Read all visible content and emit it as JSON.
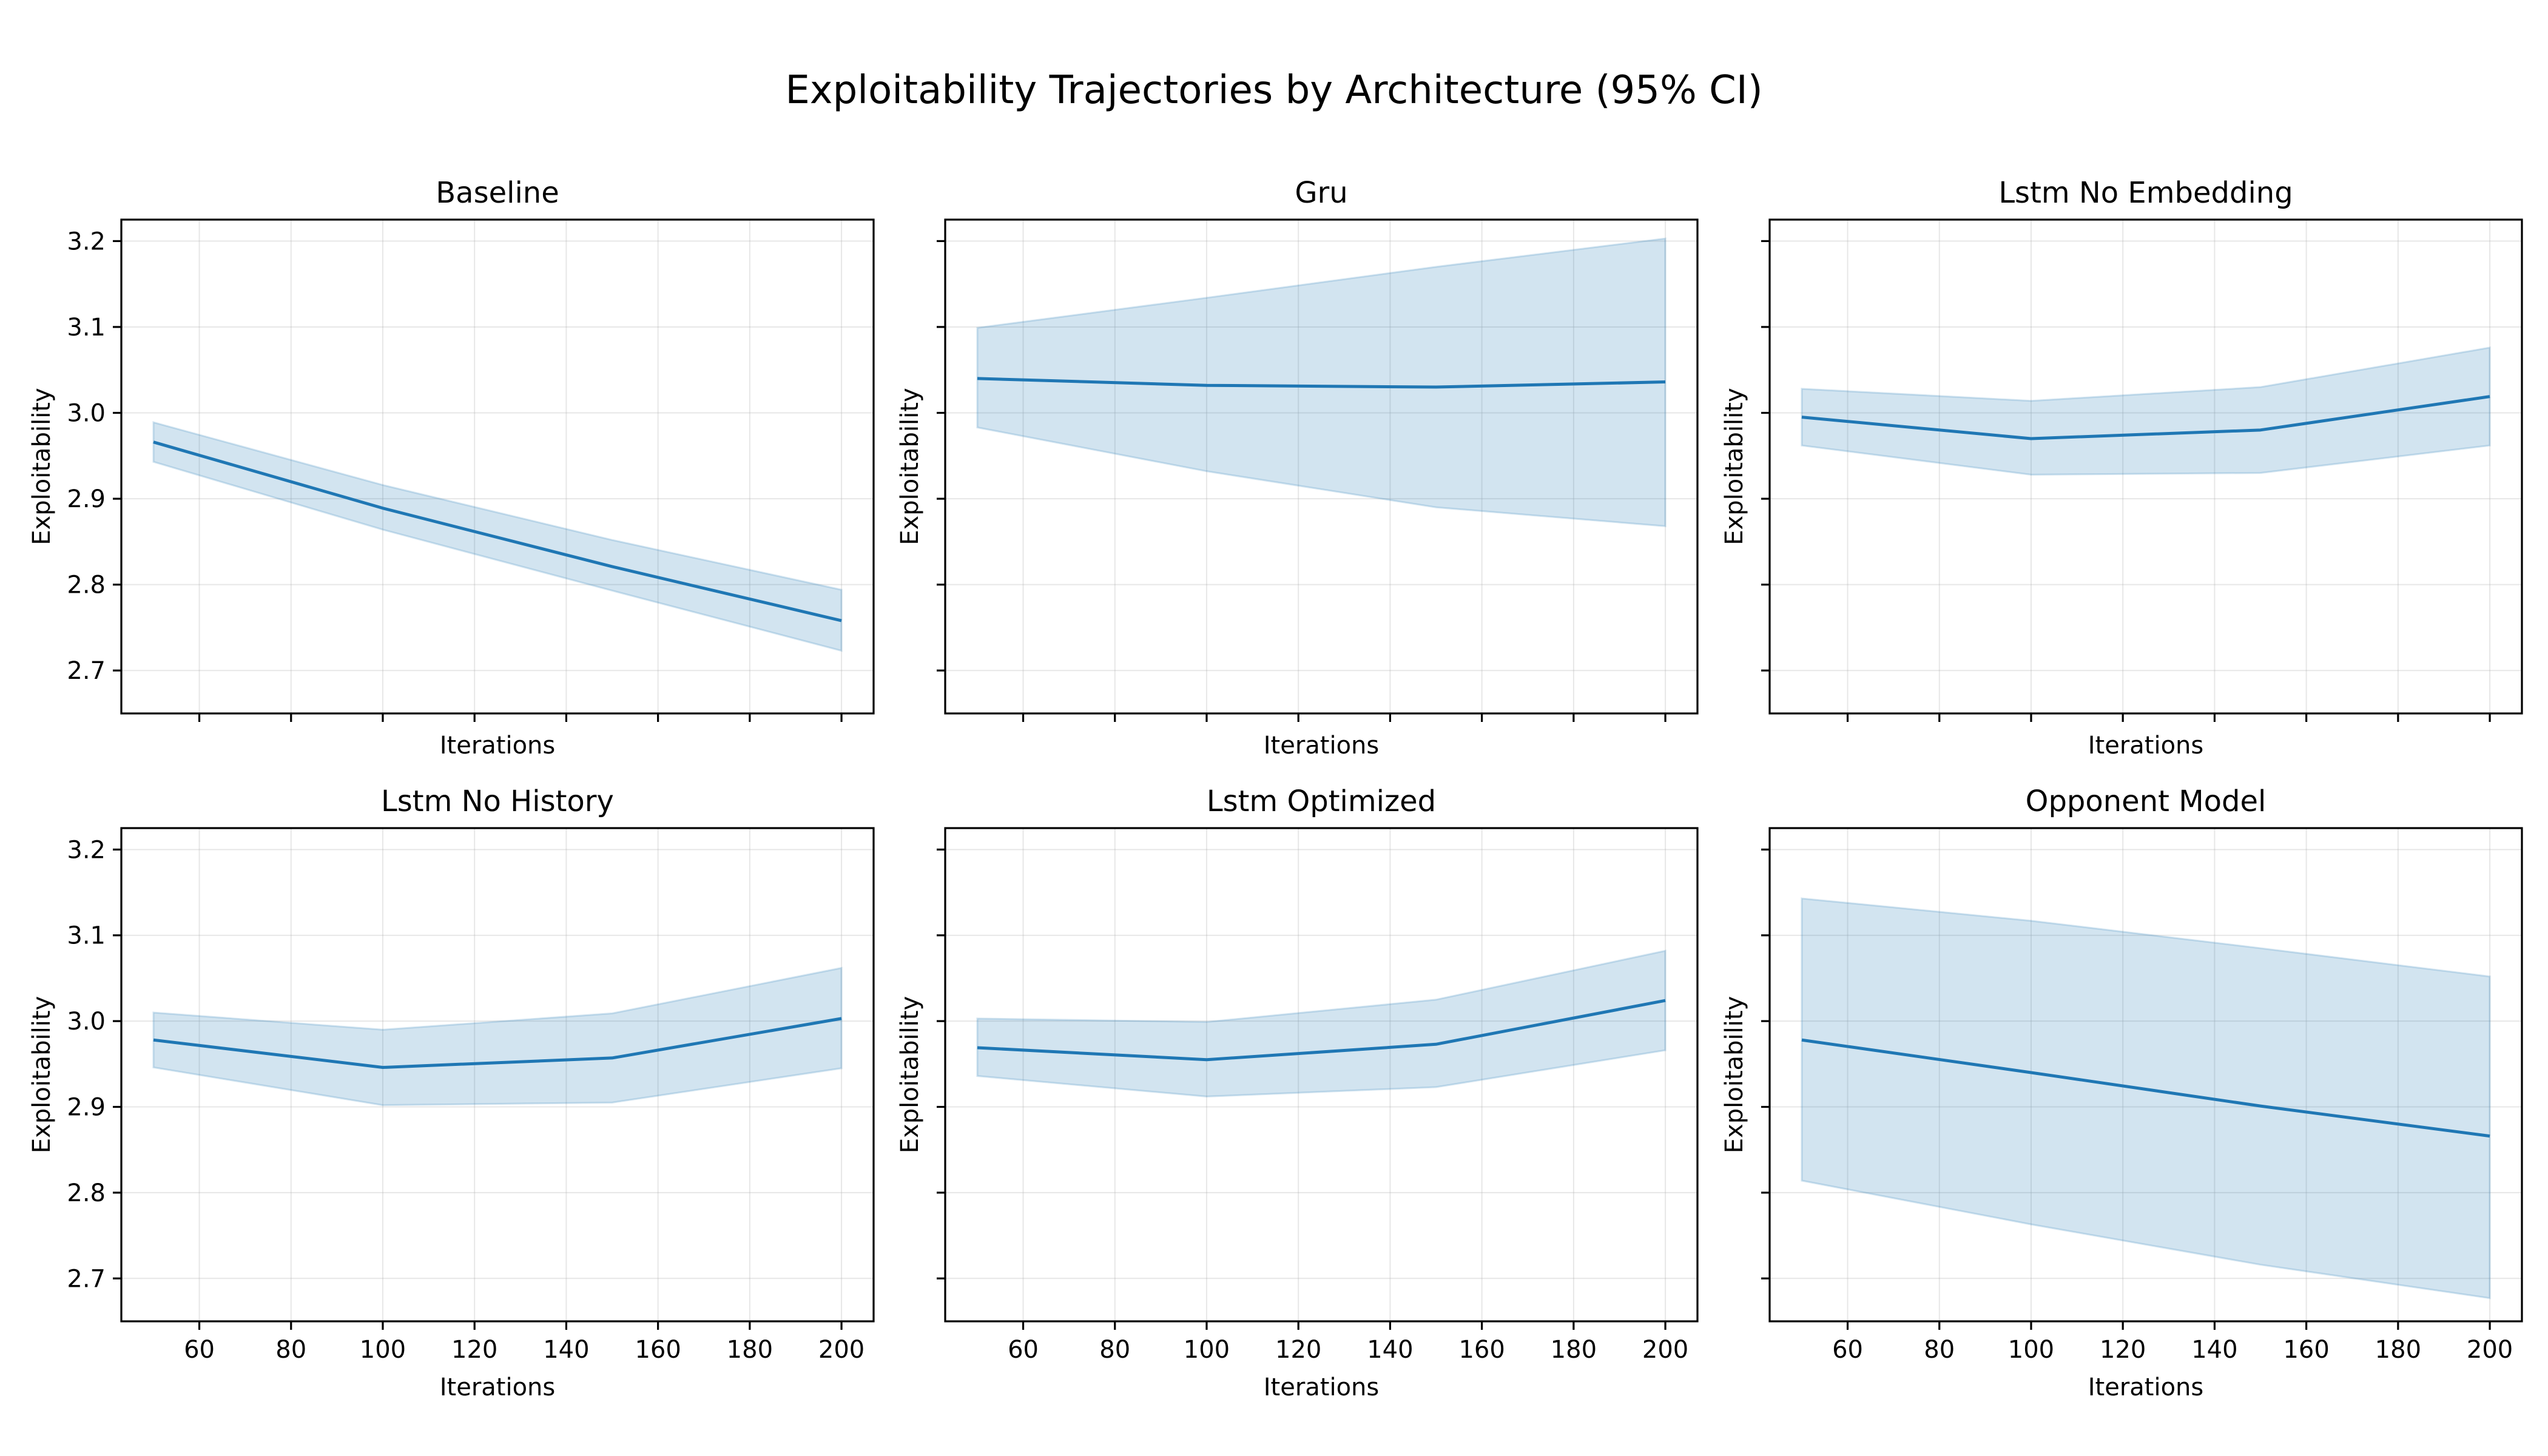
{
  "figure": {
    "title": "Exploitability Trajectories by Architecture (95% CI)"
  },
  "chart_data": {
    "type": "line",
    "layout": "grid 2x3, shared axes",
    "title": "Exploitability Trajectories by Architecture (95% CI)",
    "xlabel": "Iterations",
    "ylabel": "Exploitability",
    "xlim": [
      43,
      207
    ],
    "ylim": [
      2.65,
      3.225
    ],
    "x_ticks": [
      60,
      80,
      100,
      120,
      140,
      160,
      180,
      200
    ],
    "y_ticks": [
      2.7,
      2.8,
      2.9,
      3.0,
      3.1,
      3.2
    ],
    "x_tick_labels": [
      "60",
      "80",
      "100",
      "120",
      "140",
      "160",
      "180",
      "200"
    ],
    "y_tick_labels": [
      "2.7",
      "2.8",
      "2.9",
      "3.0",
      "3.1",
      "3.2"
    ],
    "grid": true,
    "line_color": "#1f77b4",
    "band_color": "#1f77b4",
    "x": [
      50,
      100,
      150,
      200
    ],
    "panels": [
      {
        "title": "Baseline",
        "mean": [
          2.966,
          2.889,
          2.821,
          2.758
        ],
        "lower": [
          2.943,
          2.864,
          2.793,
          2.723
        ],
        "upper": [
          2.989,
          2.916,
          2.852,
          2.794
        ]
      },
      {
        "title": "Gru",
        "mean": [
          3.04,
          3.032,
          3.03,
          3.036
        ],
        "lower": [
          2.983,
          2.932,
          2.89,
          2.868
        ],
        "upper": [
          3.099,
          3.134,
          3.17,
          3.203
        ]
      },
      {
        "title": "Lstm No Embedding",
        "mean": [
          2.995,
          2.97,
          2.98,
          3.019
        ],
        "lower": [
          2.962,
          2.928,
          2.93,
          2.962
        ],
        "upper": [
          3.028,
          3.014,
          3.03,
          3.076
        ]
      },
      {
        "title": "Lstm No History",
        "mean": [
          2.978,
          2.946,
          2.957,
          3.003
        ],
        "lower": [
          2.946,
          2.902,
          2.905,
          2.945
        ],
        "upper": [
          3.01,
          2.99,
          3.009,
          3.062
        ]
      },
      {
        "title": "Lstm Optimized",
        "mean": [
          2.969,
          2.955,
          2.973,
          3.024
        ],
        "lower": [
          2.936,
          2.912,
          2.923,
          2.966
        ],
        "upper": [
          3.003,
          2.999,
          3.025,
          3.082
        ]
      },
      {
        "title": "Opponent Model",
        "mean": [
          2.978,
          2.94,
          2.901,
          2.866
        ],
        "lower": [
          2.814,
          2.763,
          2.716,
          2.677
        ],
        "upper": [
          3.143,
          3.117,
          3.085,
          3.052
        ]
      }
    ]
  }
}
